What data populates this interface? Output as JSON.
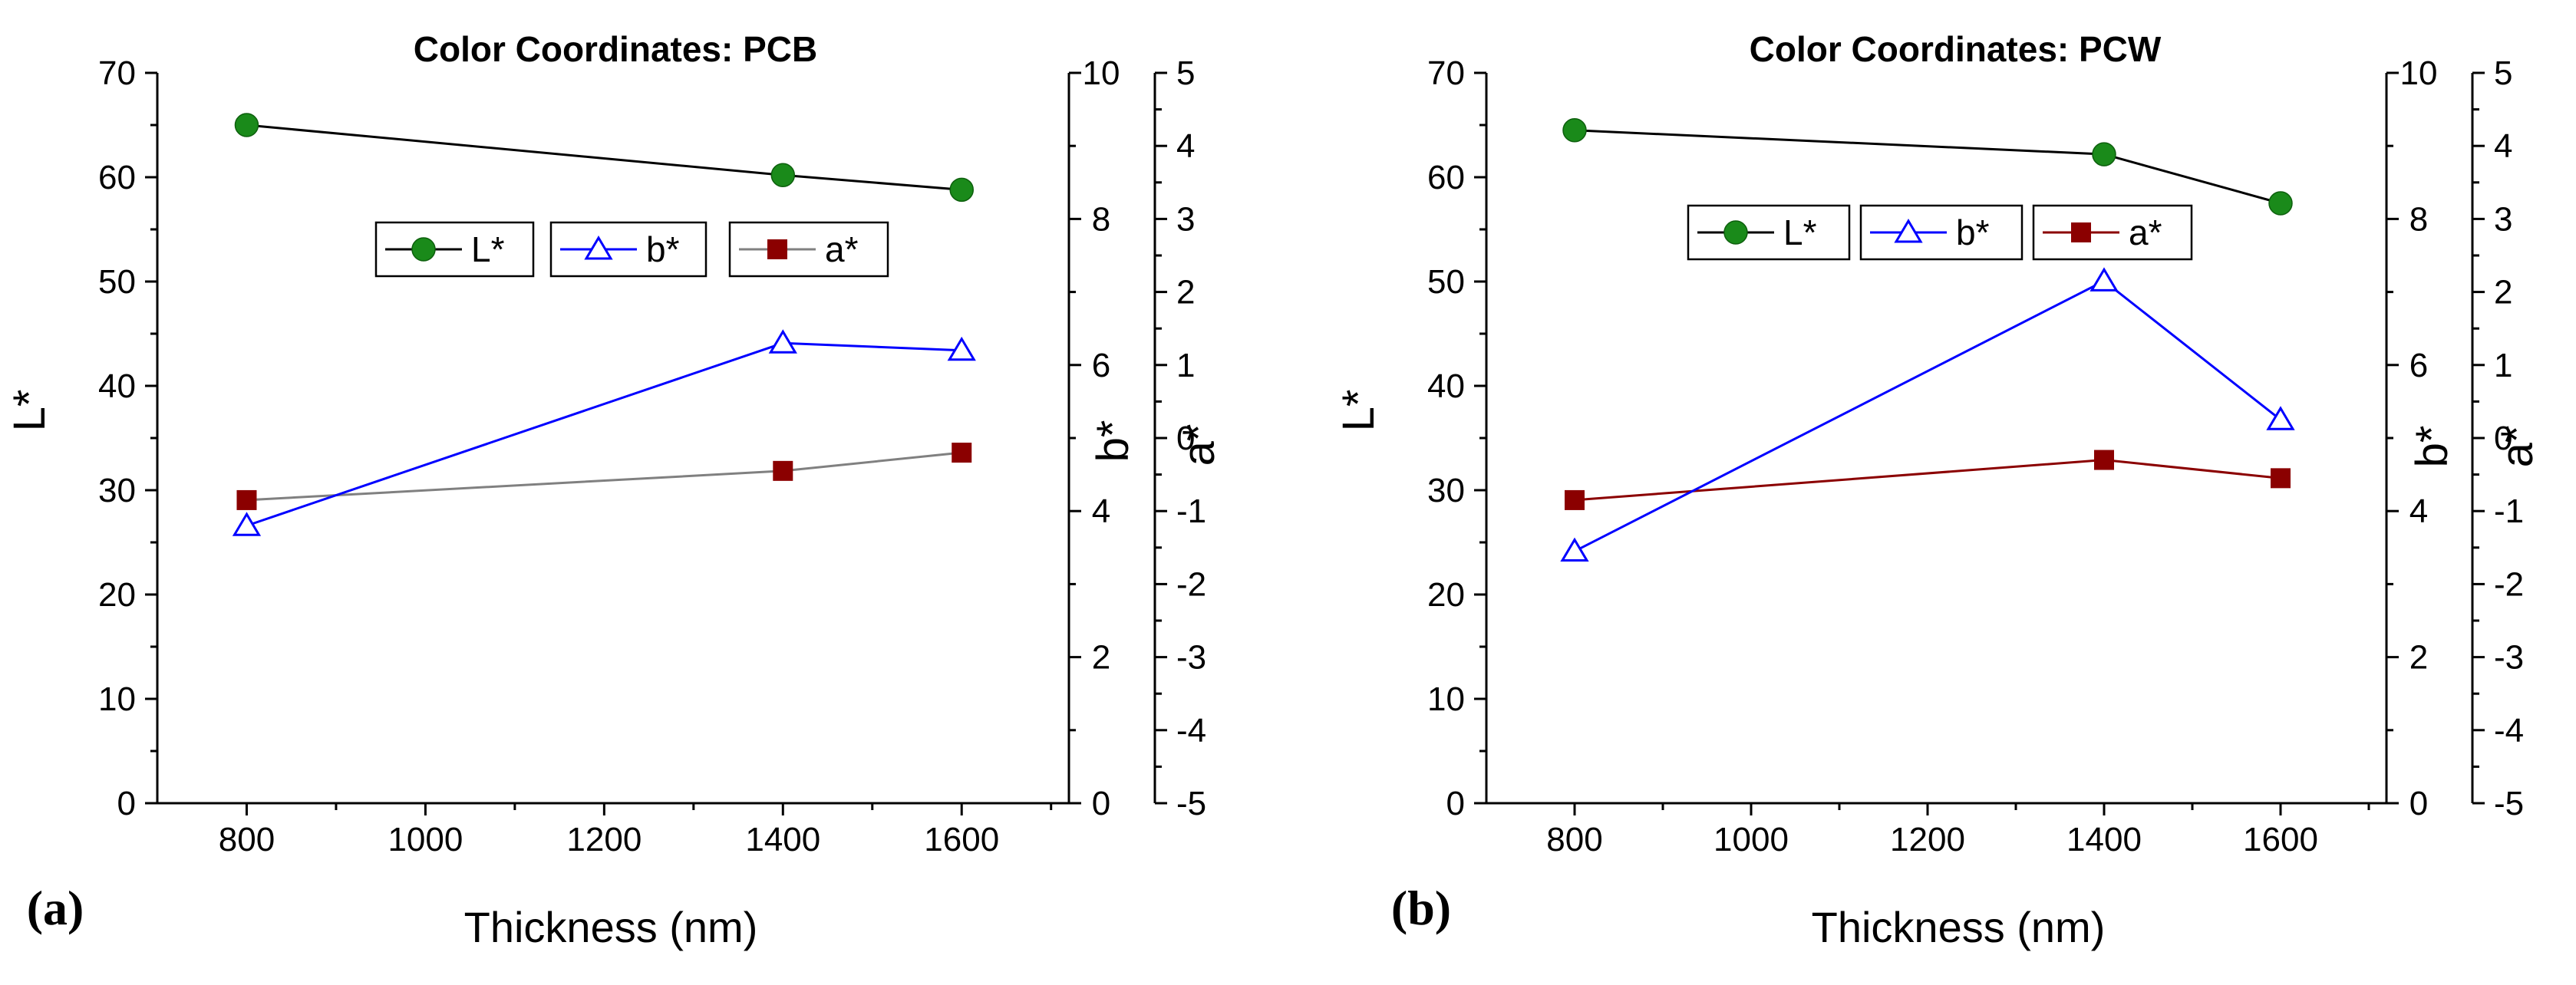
{
  "chart_data": [
    {
      "type": "line",
      "panel_label": "(a)",
      "title": "Color Coordinates: PCB",
      "xlabel": "Thickness (nm)",
      "x": [
        800,
        1400,
        1600
      ],
      "xlim": [
        700,
        1720
      ],
      "xticks": [
        800,
        1000,
        1200,
        1400,
        1600
      ],
      "axes": {
        "L": {
          "label": "L*",
          "ylim": [
            0,
            70
          ],
          "ticks": [
            0,
            10,
            20,
            30,
            40,
            50,
            60,
            70
          ]
        },
        "b": {
          "label": "b*",
          "ylim": [
            0,
            10
          ],
          "ticks": [
            0,
            2,
            4,
            6,
            8,
            10
          ]
        },
        "a": {
          "label": "a*",
          "ylim": [
            -5,
            5
          ],
          "ticks": [
            -5,
            -4,
            -3,
            -2,
            -1,
            0,
            1,
            2,
            3,
            4,
            5
          ]
        }
      },
      "series": [
        {
          "name": "L*",
          "axis": "L",
          "marker": "circle",
          "line_color": "#000000",
          "marker_color": "#1a8a1a",
          "values": [
            65,
            60.2,
            58.8
          ]
        },
        {
          "name": "b*",
          "axis": "b",
          "marker": "triangle",
          "line_color": "#0000ff",
          "marker_color": "#0000ff",
          "values": [
            3.8,
            6.3,
            6.2
          ]
        },
        {
          "name": "a*",
          "axis": "a",
          "marker": "square",
          "line_color": "#808080",
          "marker_color": "#8b0000",
          "values": [
            -0.85,
            -0.45,
            -0.2
          ]
        }
      ]
    },
    {
      "type": "line",
      "panel_label": "(b)",
      "title": "Color Coordinates: PCW",
      "xlabel": "Thickness (nm)",
      "x": [
        800,
        1400,
        1600
      ],
      "xlim": [
        700,
        1720
      ],
      "xticks": [
        800,
        1000,
        1200,
        1400,
        1600
      ],
      "axes": {
        "L": {
          "label": "L*",
          "ylim": [
            0,
            70
          ],
          "ticks": [
            0,
            10,
            20,
            30,
            40,
            50,
            60,
            70
          ]
        },
        "b": {
          "label": "b*",
          "ylim": [
            0,
            10
          ],
          "ticks": [
            0,
            2,
            4,
            6,
            8,
            10
          ]
        },
        "a": {
          "label": "a*",
          "ylim": [
            -5,
            5
          ],
          "ticks": [
            -5,
            -4,
            -3,
            -2,
            -1,
            0,
            1,
            2,
            3,
            4,
            5
          ]
        }
      },
      "series": [
        {
          "name": "L*",
          "axis": "L",
          "marker": "circle",
          "line_color": "#000000",
          "marker_color": "#1a8a1a",
          "values": [
            64.5,
            62.2,
            57.5
          ]
        },
        {
          "name": "b*",
          "axis": "b",
          "marker": "triangle",
          "line_color": "#0000ff",
          "marker_color": "#0000ff",
          "values": [
            3.45,
            7.15,
            5.25
          ]
        },
        {
          "name": "a*",
          "axis": "a",
          "marker": "square",
          "line_color": "#8b0000",
          "marker_color": "#8b0000",
          "values": [
            -0.85,
            -0.3,
            -0.55
          ]
        }
      ]
    }
  ]
}
